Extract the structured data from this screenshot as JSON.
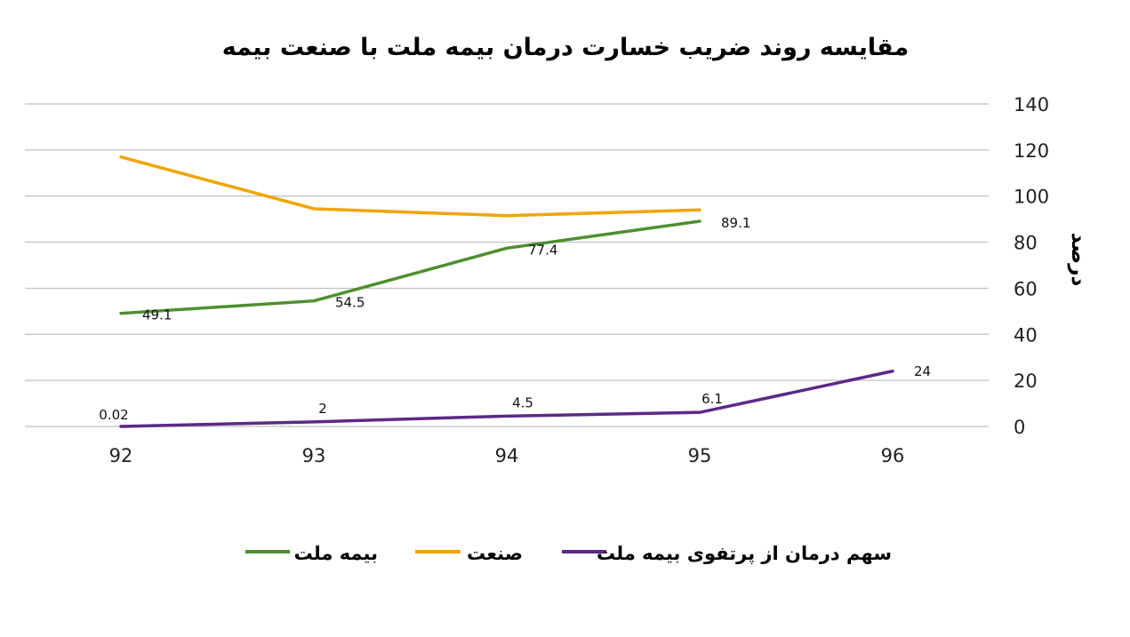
{
  "chart_data": {
    "type": "line",
    "title": "مقایسه روند ضریب خسارت درمان بیمه ملت با صنعت بیمه",
    "ylabel": "درصد",
    "xlabel": "",
    "categories": [
      "92",
      "93",
      "94",
      "95",
      "96"
    ],
    "ylim": [
      0,
      140
    ],
    "yticks": [
      0,
      20,
      40,
      60,
      80,
      100,
      120,
      140
    ],
    "grid": true,
    "legend_position": "bottom",
    "series": [
      {
        "name": "بیمه ملت",
        "color": "#4e8f2f",
        "values": [
          49.1,
          54.5,
          77.4,
          89.1,
          null
        ],
        "labels": [
          "49.1",
          "54.5",
          "77.4",
          "89.1",
          ""
        ]
      },
      {
        "name": "صنعت",
        "color": "#f0a500",
        "values": [
          117,
          94.5,
          91.5,
          94,
          null
        ],
        "labels": [
          "",
          "",
          "",
          "",
          ""
        ]
      },
      {
        "name": "سهم درمان از پرتفوی بیمه ملت",
        "color": "#5b2a86",
        "values": [
          0.02,
          2,
          4.5,
          6.1,
          24
        ],
        "labels": [
          "0.02",
          "2",
          "4.5",
          "6.1",
          "24"
        ]
      }
    ]
  }
}
